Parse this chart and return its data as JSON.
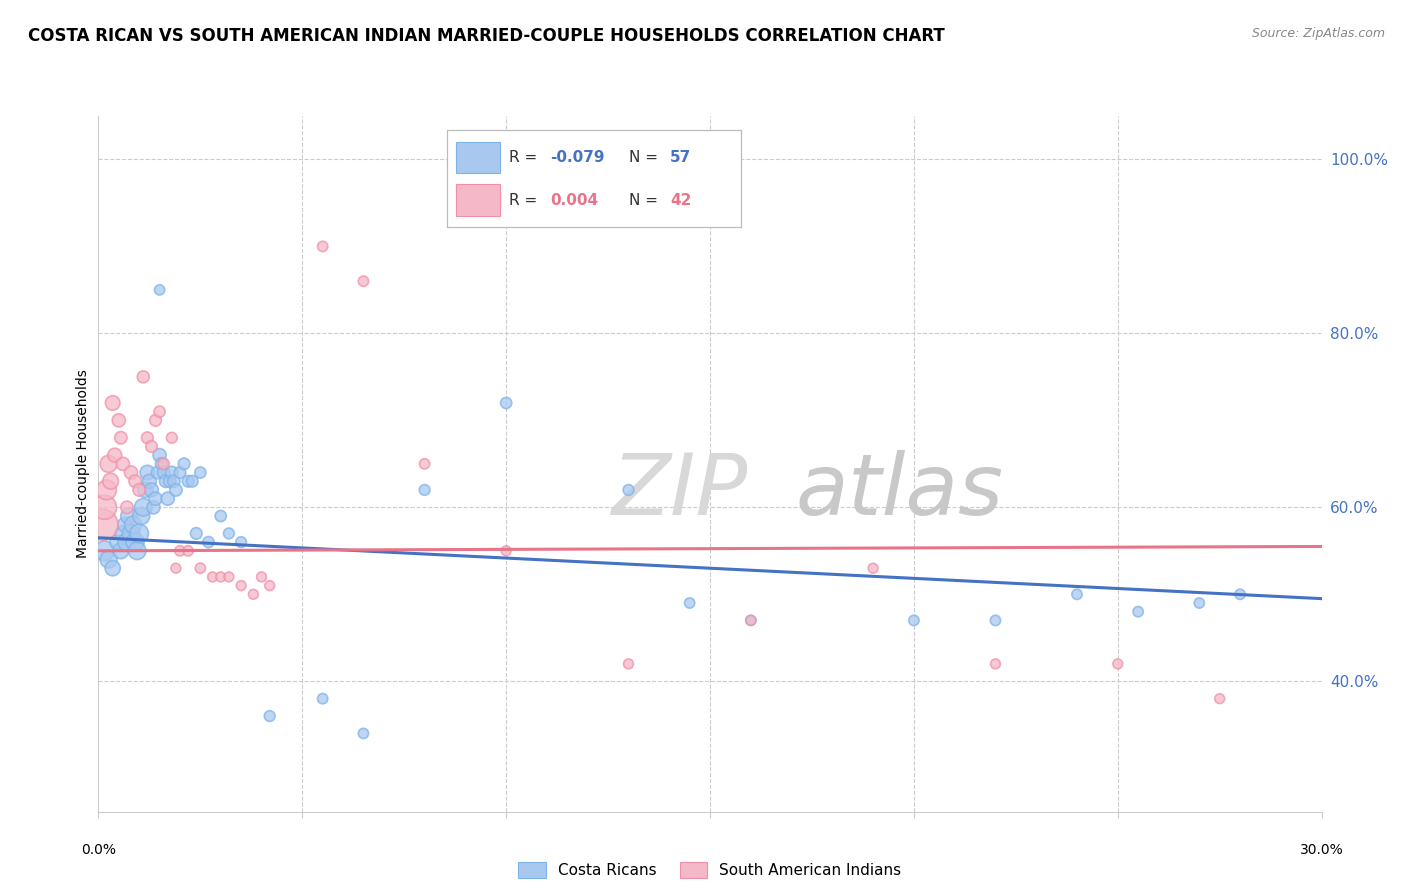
{
  "title": "COSTA RICAN VS SOUTH AMERICAN INDIAN MARRIED-COUPLE HOUSEHOLDS CORRELATION CHART",
  "source": "Source: ZipAtlas.com",
  "ylabel": "Married-couple Households",
  "yticks": [
    40.0,
    60.0,
    80.0,
    100.0
  ],
  "ytick_labels": [
    "40.0%",
    "60.0%",
    "80.0%",
    "100.0%"
  ],
  "xmin": 0.0,
  "xmax": 30.0,
  "ymin": 25.0,
  "ymax": 105.0,
  "legend_blue_r": "-0.079",
  "legend_blue_n": "57",
  "legend_pink_r": "0.004",
  "legend_pink_n": "42",
  "blue_color": "#A8C8F0",
  "pink_color": "#F5B8C8",
  "blue_edge_color": "#7EB3E8",
  "pink_edge_color": "#F090A8",
  "blue_line_color": "#4472C4",
  "pink_line_color": "#E8748A",
  "watermark_zip": "ZIP",
  "watermark_atlas": "atlas",
  "blue_scatter_x": [
    0.15,
    0.25,
    0.35,
    0.45,
    0.55,
    0.6,
    0.65,
    0.7,
    0.75,
    0.8,
    0.85,
    0.9,
    0.95,
    1.0,
    1.05,
    1.1,
    1.15,
    1.2,
    1.25,
    1.3,
    1.35,
    1.4,
    1.45,
    1.5,
    1.55,
    1.6,
    1.65,
    1.7,
    1.75,
    1.8,
    1.85,
    1.9,
    2.0,
    2.1,
    2.2,
    2.3,
    2.4,
    2.5,
    2.7,
    3.0,
    3.2,
    3.5,
    4.2,
    5.5,
    6.5,
    8.0,
    10.0,
    13.0,
    14.5,
    16.0,
    20.0,
    22.0,
    24.0,
    25.5,
    27.0,
    28.0,
    1.5
  ],
  "blue_scatter_y": [
    55,
    54,
    53,
    56,
    55,
    57,
    58,
    56,
    59,
    57,
    58,
    56,
    55,
    57,
    59,
    60,
    62,
    64,
    63,
    62,
    60,
    61,
    64,
    66,
    65,
    64,
    63,
    61,
    63,
    64,
    63,
    62,
    64,
    65,
    63,
    63,
    57,
    64,
    56,
    59,
    57,
    56,
    36,
    38,
    34,
    62,
    72,
    62,
    49,
    47,
    47,
    47,
    50,
    48,
    49,
    50,
    85
  ],
  "blue_scatter_size": [
    200,
    150,
    120,
    100,
    130,
    120,
    110,
    170,
    140,
    160,
    150,
    170,
    160,
    180,
    150,
    160,
    120,
    110,
    100,
    100,
    90,
    90,
    80,
    90,
    80,
    80,
    80,
    90,
    80,
    80,
    80,
    80,
    70,
    70,
    70,
    70,
    70,
    65,
    65,
    65,
    60,
    60,
    60,
    55,
    55,
    60,
    65,
    60,
    55,
    55,
    55,
    55,
    55,
    55,
    55,
    55,
    55
  ],
  "pink_scatter_x": [
    0.1,
    0.15,
    0.2,
    0.25,
    0.3,
    0.35,
    0.4,
    0.5,
    0.55,
    0.6,
    0.7,
    0.8,
    0.9,
    1.0,
    1.1,
    1.2,
    1.3,
    1.4,
    1.5,
    1.6,
    1.8,
    2.0,
    2.2,
    2.5,
    2.8,
    3.0,
    3.2,
    3.5,
    4.0,
    4.2,
    5.5,
    6.5,
    8.0,
    10.0,
    13.0,
    16.0,
    19.0,
    22.0,
    25.0,
    27.5,
    3.8,
    1.9
  ],
  "pink_scatter_y": [
    58,
    60,
    62,
    65,
    63,
    72,
    66,
    70,
    68,
    65,
    60,
    64,
    63,
    62,
    75,
    68,
    67,
    70,
    71,
    65,
    68,
    55,
    55,
    53,
    52,
    52,
    52,
    51,
    52,
    51,
    90,
    86,
    65,
    55,
    42,
    47,
    53,
    42,
    42,
    38,
    50,
    53
  ],
  "pink_scatter_size": [
    500,
    300,
    200,
    150,
    130,
    110,
    100,
    90,
    80,
    90,
    80,
    90,
    80,
    80,
    75,
    70,
    70,
    70,
    65,
    65,
    60,
    55,
    55,
    55,
    50,
    50,
    50,
    50,
    50,
    50,
    55,
    55,
    55,
    50,
    50,
    50,
    50,
    50,
    50,
    50,
    50,
    50
  ],
  "blue_trend_x": [
    0.0,
    30.0
  ],
  "blue_trend_y": [
    56.5,
    49.5
  ],
  "pink_trend_x": [
    0.0,
    30.0
  ],
  "pink_trend_y": [
    55.0,
    55.5
  ],
  "fig_bg": "#FFFFFF",
  "plot_bg": "#FFFFFF",
  "grid_color": "#CCCCCC",
  "title_fontsize": 12,
  "axis_label_fontsize": 10,
  "tick_fontsize": 10,
  "legend_fontsize": 12
}
